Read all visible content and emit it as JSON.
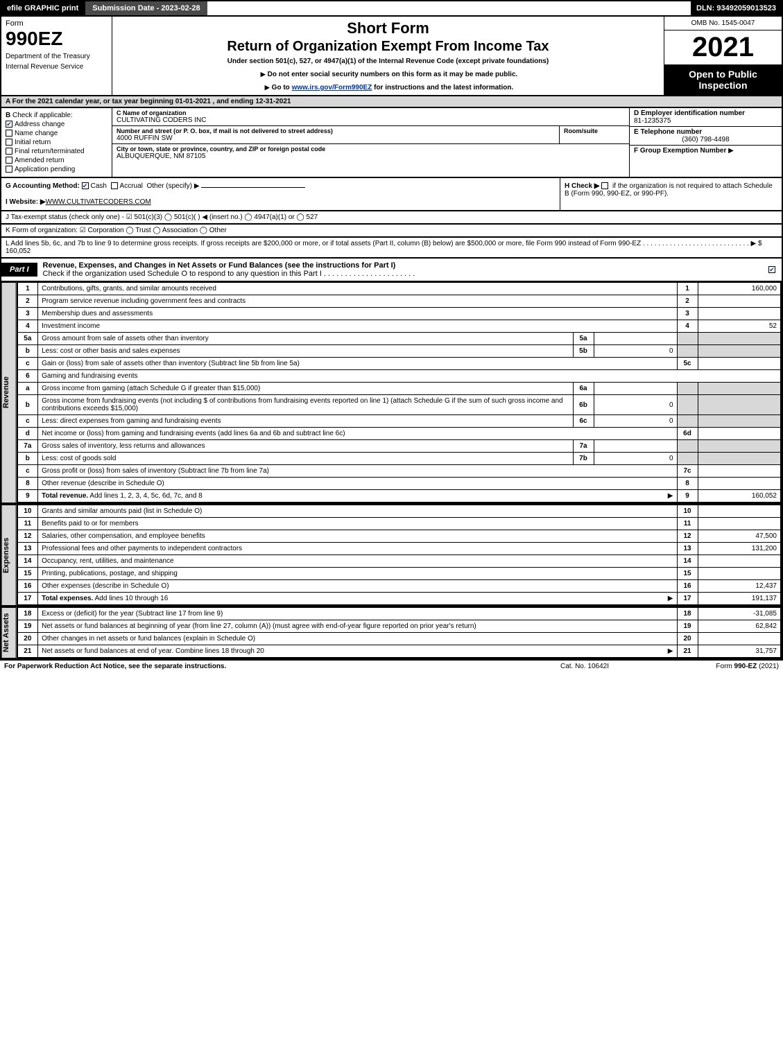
{
  "topbar": {
    "efile": "efile GRAPHIC print",
    "submission_label": "Submission Date - 2023-02-28",
    "dln": "DLN: 93492059013523"
  },
  "header": {
    "form_label": "Form",
    "form_number": "990EZ",
    "dept1": "Department of the Treasury",
    "dept2": "Internal Revenue Service",
    "title1": "Short Form",
    "title2": "Return of Organization Exempt From Income Tax",
    "subtitle": "Under section 501(c), 527, or 4947(a)(1) of the Internal Revenue Code (except private foundations)",
    "warn": "Do not enter social security numbers on this form as it may be made public.",
    "goto_pre": "Go to ",
    "goto_link": "www.irs.gov/Form990EZ",
    "goto_post": " for instructions and the latest information.",
    "omb": "OMB No. 1545-0047",
    "year": "2021",
    "open": "Open to Public Inspection"
  },
  "line_a": "A  For the 2021 calendar year, or tax year beginning 01-01-2021 , and ending 12-31-2021",
  "section_b": {
    "label": "B",
    "check_if": "Check if applicable:",
    "items": [
      {
        "label": "Address change",
        "checked": true
      },
      {
        "label": "Name change",
        "checked": false
      },
      {
        "label": "Initial return",
        "checked": false
      },
      {
        "label": "Final return/terminated",
        "checked": false
      },
      {
        "label": "Amended return",
        "checked": false
      },
      {
        "label": "Application pending",
        "checked": false
      }
    ]
  },
  "section_c": {
    "c_label": "C Name of organization",
    "name": "CULTIVATING CODERS INC",
    "addr_label": "Number and street (or P. O. box, if mail is not delivered to street address)",
    "room_label": "Room/suite",
    "street": "4000 RUFFIN SW",
    "city_label": "City or town, state or province, country, and ZIP or foreign postal code",
    "city": "ALBUQUERQUE, NM  87105"
  },
  "section_def": {
    "d_label": "D Employer identification number",
    "ein": "81-1235375",
    "e_label": "E Telephone number",
    "phone": "(360) 798-4498",
    "f_label": "F Group Exemption Number",
    "f_arrow": "▶"
  },
  "line_g": {
    "label": "G Accounting Method:",
    "cash": "Cash",
    "accrual": "Accrual",
    "other": "Other (specify) ▶",
    "cash_checked": true
  },
  "line_h": {
    "text_pre": "H  Check ▶",
    "text": "if the organization is not required to attach Schedule B (Form 990, 990-EZ, or 990-PF)."
  },
  "line_i": {
    "label": "I Website: ▶",
    "value": "WWW.CULTIVATECODERS.COM"
  },
  "line_j": "J Tax-exempt status (check only one) - ☑ 501(c)(3)  ◯ 501(c)(  ) ◀ (insert no.)  ◯ 4947(a)(1) or  ◯ 527",
  "line_k": "K Form of organization:  ☑ Corporation  ◯ Trust  ◯ Association  ◯ Other",
  "line_l": {
    "text": "L Add lines 5b, 6c, and 7b to line 9 to determine gross receipts. If gross receipts are $200,000 or more, or if total assets (Part II, column (B) below) are $500,000 or more, file Form 990 instead of Form 990-EZ . . . . . . . . . . . . . . . . . . . . . . . . . . . . ▶ $",
    "amount": "160,052"
  },
  "part1": {
    "tab": "Part I",
    "title": "Revenue, Expenses, and Changes in Net Assets or Fund Balances (see the instructions for Part I)",
    "check_label": "Check if the organization used Schedule O to respond to any question in this Part I . . . . . . . . . . . . . . . . . . . . . ."
  },
  "vlabels": {
    "revenue": "Revenue",
    "expenses": "Expenses",
    "netassets": "Net Assets"
  },
  "revenue": [
    {
      "no": "1",
      "desc": "Contributions, gifts, grants, and similar amounts received",
      "ln": "1",
      "val": "160,000"
    },
    {
      "no": "2",
      "desc": "Program service revenue including government fees and contracts",
      "ln": "2",
      "val": ""
    },
    {
      "no": "3",
      "desc": "Membership dues and assessments",
      "ln": "3",
      "val": ""
    },
    {
      "no": "4",
      "desc": "Investment income",
      "ln": "4",
      "val": "52"
    },
    {
      "no": "5a",
      "desc": "Gross amount from sale of assets other than inventory",
      "subno": "5a",
      "subval": ""
    },
    {
      "no": "b",
      "desc": "Less: cost or other basis and sales expenses",
      "subno": "5b",
      "subval": "0"
    },
    {
      "no": "c",
      "desc": "Gain or (loss) from sale of assets other than inventory (Subtract line 5b from line 5a)",
      "ln": "5c",
      "val": ""
    },
    {
      "no": "6",
      "desc": "Gaming and fundraising events"
    },
    {
      "no": "a",
      "desc": "Gross income from gaming (attach Schedule G if greater than $15,000)",
      "subno": "6a",
      "subval": ""
    },
    {
      "no": "b",
      "desc": "Gross income from fundraising events (not including $                    of contributions from fundraising events reported on line 1) (attach Schedule G if the sum of such gross income and contributions exceeds $15,000)",
      "subno": "6b",
      "subval": "0"
    },
    {
      "no": "c",
      "desc": "Less: direct expenses from gaming and fundraising events",
      "subno": "6c",
      "subval": "0"
    },
    {
      "no": "d",
      "desc": "Net income or (loss) from gaming and fundraising events (add lines 6a and 6b and subtract line 6c)",
      "ln": "6d",
      "val": ""
    },
    {
      "no": "7a",
      "desc": "Gross sales of inventory, less returns and allowances",
      "subno": "7a",
      "subval": ""
    },
    {
      "no": "b",
      "desc": "Less: cost of goods sold",
      "subno": "7b",
      "subval": "0"
    },
    {
      "no": "c",
      "desc": "Gross profit or (loss) from sales of inventory (Subtract line 7b from line 7a)",
      "ln": "7c",
      "val": ""
    },
    {
      "no": "8",
      "desc": "Other revenue (describe in Schedule O)",
      "ln": "8",
      "val": ""
    },
    {
      "no": "9",
      "desc": "Total revenue. Add lines 1, 2, 3, 4, 5c, 6d, 7c, and 8",
      "ln": "9",
      "val": "160,052",
      "bold": true,
      "arrow": true
    }
  ],
  "expenses": [
    {
      "no": "10",
      "desc": "Grants and similar amounts paid (list in Schedule O)",
      "ln": "10",
      "val": ""
    },
    {
      "no": "11",
      "desc": "Benefits paid to or for members",
      "ln": "11",
      "val": ""
    },
    {
      "no": "12",
      "desc": "Salaries, other compensation, and employee benefits",
      "ln": "12",
      "val": "47,500"
    },
    {
      "no": "13",
      "desc": "Professional fees and other payments to independent contractors",
      "ln": "13",
      "val": "131,200"
    },
    {
      "no": "14",
      "desc": "Occupancy, rent, utilities, and maintenance",
      "ln": "14",
      "val": ""
    },
    {
      "no": "15",
      "desc": "Printing, publications, postage, and shipping",
      "ln": "15",
      "val": ""
    },
    {
      "no": "16",
      "desc": "Other expenses (describe in Schedule O)",
      "ln": "16",
      "val": "12,437"
    },
    {
      "no": "17",
      "desc": "Total expenses. Add lines 10 through 16",
      "ln": "17",
      "val": "191,137",
      "bold": true,
      "arrow": true
    }
  ],
  "netassets": [
    {
      "no": "18",
      "desc": "Excess or (deficit) for the year (Subtract line 17 from line 9)",
      "ln": "18",
      "val": "-31,085"
    },
    {
      "no": "19",
      "desc": "Net assets or fund balances at beginning of year (from line 27, column (A)) (must agree with end-of-year figure reported on prior year's return)",
      "ln": "19",
      "val": "62,842"
    },
    {
      "no": "20",
      "desc": "Other changes in net assets or fund balances (explain in Schedule O)",
      "ln": "20",
      "val": ""
    },
    {
      "no": "21",
      "desc": "Net assets or fund balances at end of year. Combine lines 18 through 20",
      "ln": "21",
      "val": "31,757",
      "arrow": true
    }
  ],
  "footer": {
    "left": "For Paperwork Reduction Act Notice, see the separate instructions.",
    "center": "Cat. No. 10642I",
    "right": "Form 990-EZ (2021)"
  }
}
